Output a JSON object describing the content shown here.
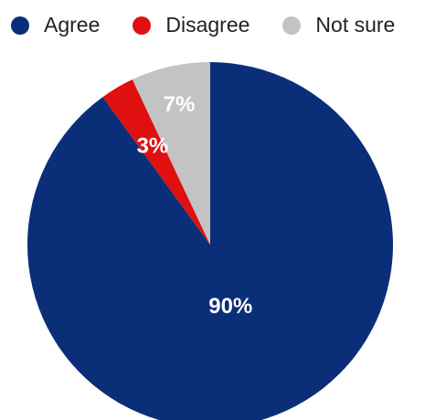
{
  "chart_data": {
    "type": "pie",
    "title": "",
    "legend_position": "top",
    "categories": [
      "Agree",
      "Disagree",
      "Not sure"
    ],
    "values": [
      90,
      3,
      7
    ],
    "value_labels": [
      "90%",
      "3%",
      "7%"
    ],
    "colors": [
      "#0a2f78",
      "#e01010",
      "#c3c3c3"
    ],
    "start_angle_deg": 0,
    "direction": "clockwise"
  }
}
